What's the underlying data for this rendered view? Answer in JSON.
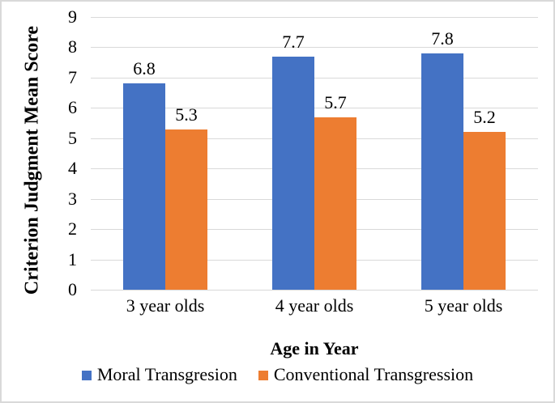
{
  "figure": {
    "background": "#ffffff",
    "border_color": "#d9d9d9"
  },
  "chart_data": {
    "type": "bar",
    "title": "",
    "categories": [
      "3 year olds",
      "4 year olds",
      "5 year olds"
    ],
    "series": [
      {
        "name": "Moral Transgresion",
        "color": "#4472C4",
        "values": [
          6.8,
          7.7,
          7.8
        ]
      },
      {
        "name": "Conventional Transgression",
        "color": "#ED7D31",
        "values": [
          5.3,
          5.7,
          5.2
        ]
      }
    ],
    "xlabel": "Age in Year",
    "ylabel": "Criterion Judgment Mean Score",
    "ylim": [
      0,
      9
    ],
    "yticks": [
      0,
      1,
      2,
      3,
      4,
      5,
      6,
      7,
      8,
      9
    ],
    "grid": true,
    "gridline_color": "#d9d9d9",
    "data_labels": true,
    "data_label_format": "0.0",
    "legend_position": "bottom",
    "text_color": "#000000"
  }
}
